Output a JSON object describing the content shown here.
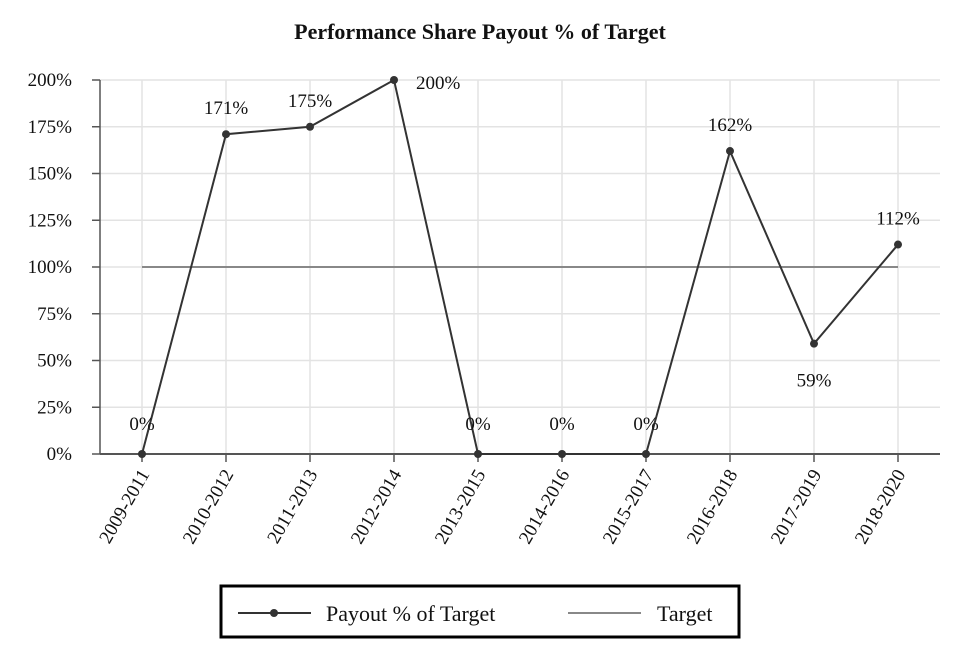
{
  "chart_data": {
    "type": "line",
    "title": "Performance Share Payout % of Target",
    "xlabel": "",
    "ylabel": "",
    "categories": [
      "2009-2011",
      "2010-2012",
      "2011-2013",
      "2012-2014",
      "2013-2015",
      "2014-2016",
      "2015-2017",
      "2016-2018",
      "2017-2019",
      "2018-2020"
    ],
    "series": [
      {
        "name": "Payout % of Target",
        "values": [
          0,
          171,
          175,
          200,
          0,
          0,
          0,
          162,
          59,
          112
        ],
        "labels": [
          "0%",
          "171%",
          "175%",
          "200%",
          "0%",
          "0%",
          "0%",
          "162%",
          "59%",
          "112%"
        ],
        "color": "#333333",
        "marker": "circle"
      },
      {
        "name": "Target",
        "values": [
          100,
          100,
          100,
          100,
          100,
          100,
          100,
          100,
          100,
          100
        ],
        "color": "#888888",
        "marker": "none"
      }
    ],
    "ylim": [
      0,
      200
    ],
    "yticks": [
      0,
      25,
      50,
      75,
      100,
      125,
      150,
      175,
      200
    ],
    "ytick_labels": [
      "0%",
      "25%",
      "50%",
      "75%",
      "100%",
      "125%",
      "150%",
      "175%",
      "200%"
    ],
    "grid": true,
    "legend_position": "bottom-center"
  }
}
